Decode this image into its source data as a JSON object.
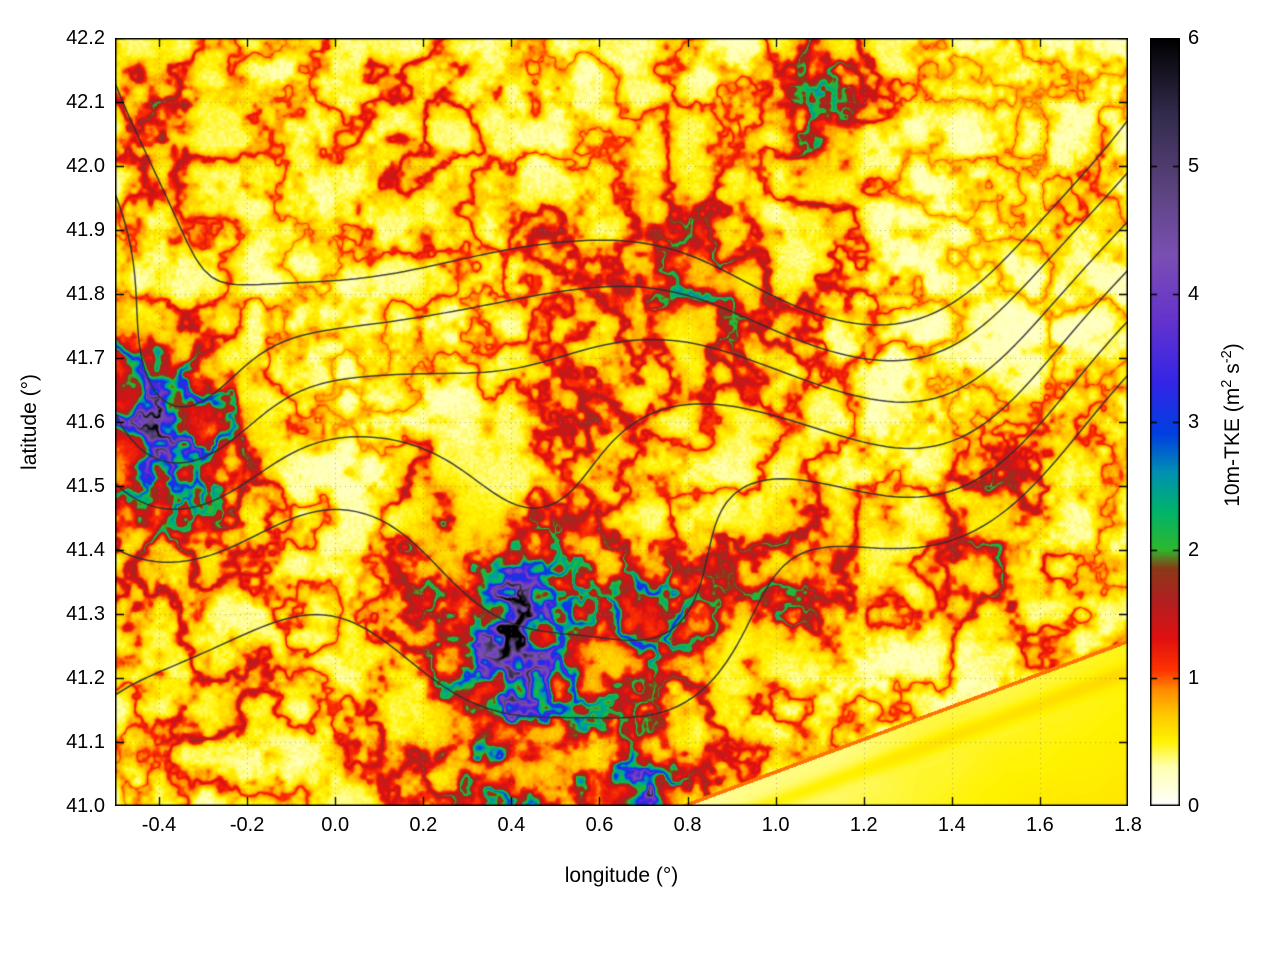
{
  "figure": {
    "background": "#ffffff",
    "frame_color": "#000000",
    "grid_color": "#787878",
    "contour_color": "#2e2e2e"
  },
  "chart_data": {
    "type": "heatmap",
    "title": "",
    "xlabel": "longitude (°)",
    "ylabel": "latitude (°)",
    "xlim": [
      -0.5,
      1.8
    ],
    "ylim": [
      41.0,
      42.2
    ],
    "grid": true,
    "xticks": [
      -0.4,
      -0.2,
      0.0,
      0.2,
      0.4,
      0.6,
      0.8,
      1.0,
      1.2,
      1.4,
      1.6,
      1.8
    ],
    "yticks": [
      41.0,
      41.1,
      41.2,
      41.3,
      41.4,
      41.5,
      41.6,
      41.7,
      41.8,
      41.9,
      42.0,
      42.1,
      42.2
    ],
    "tick_format": {
      "x_decimals": 1,
      "y_decimals": 1,
      "cb_decimals": 0
    },
    "colorbar": {
      "label_parts": {
        "prefix": "10m-TKE (m",
        "sup1": "2",
        "mid": " s",
        "sup2": "-2",
        "suffix": ")"
      },
      "range": [
        0,
        6
      ],
      "ticks": [
        0,
        1,
        2,
        3,
        4,
        5,
        6
      ],
      "position": "right"
    },
    "palette": [
      [
        0.0,
        "#ffffff"
      ],
      [
        0.3,
        "#ffffb0"
      ],
      [
        0.5,
        "#fff200"
      ],
      [
        0.7,
        "#ffc800"
      ],
      [
        0.9,
        "#ff8c00"
      ],
      [
        1.05,
        "#ff3300"
      ],
      [
        1.3,
        "#e01010"
      ],
      [
        1.6,
        "#b02020"
      ],
      [
        1.85,
        "#8a3a18"
      ],
      [
        2.0,
        "#2eb82e"
      ],
      [
        2.3,
        "#00b36b"
      ],
      [
        2.6,
        "#0090b3"
      ],
      [
        2.9,
        "#0040e0"
      ],
      [
        3.3,
        "#3325e6"
      ],
      [
        3.8,
        "#6633cc"
      ],
      [
        4.3,
        "#7a4fb3"
      ],
      [
        4.8,
        "#5c4480"
      ],
      [
        5.4,
        "#332b4d"
      ],
      [
        6.0,
        "#000000"
      ]
    ],
    "heatmap": {
      "units": "m2 s-2",
      "lon": [
        -0.5,
        -0.4,
        -0.3,
        -0.2,
        -0.1,
        0.0,
        0.1,
        0.2,
        0.3,
        0.4,
        0.5,
        0.6,
        0.7,
        0.8,
        0.9,
        1.0,
        1.1,
        1.2,
        1.3,
        1.4,
        1.5,
        1.6,
        1.7,
        1.8
      ],
      "lat": [
        42.2,
        42.1,
        42.0,
        41.9,
        41.8,
        41.7,
        41.6,
        41.5,
        41.4,
        41.3,
        41.2,
        41.1,
        41.0
      ],
      "values": [
        [
          0.45,
          0.4,
          0.38,
          0.35,
          0.3,
          0.45,
          0.5,
          0.45,
          0.4,
          0.35,
          0.3,
          0.35,
          0.4,
          0.35,
          0.3,
          0.45,
          0.75,
          0.5,
          0.35,
          0.3,
          0.3,
          0.35,
          0.3,
          0.3
        ],
        [
          0.55,
          0.7,
          0.5,
          0.4,
          0.35,
          0.4,
          0.45,
          0.5,
          0.45,
          0.4,
          0.35,
          0.3,
          0.35,
          0.4,
          0.35,
          0.45,
          0.95,
          0.55,
          0.35,
          0.3,
          0.3,
          0.3,
          0.35,
          0.3
        ],
        [
          0.45,
          0.6,
          0.45,
          0.4,
          0.35,
          0.4,
          0.5,
          0.45,
          0.4,
          0.4,
          0.35,
          0.35,
          0.4,
          0.45,
          0.4,
          0.4,
          0.8,
          0.45,
          0.3,
          0.3,
          0.35,
          0.3,
          0.4,
          0.35
        ],
        [
          0.35,
          0.4,
          0.4,
          0.35,
          0.3,
          0.35,
          0.4,
          0.45,
          0.4,
          0.45,
          0.6,
          0.4,
          0.5,
          0.7,
          0.5,
          0.4,
          0.5,
          0.4,
          0.3,
          0.3,
          0.3,
          0.35,
          0.4,
          0.3
        ],
        [
          0.3,
          0.35,
          0.4,
          0.35,
          0.3,
          0.3,
          0.35,
          0.4,
          0.35,
          0.4,
          0.45,
          0.5,
          0.6,
          0.9,
          0.8,
          0.6,
          0.5,
          0.45,
          0.35,
          0.3,
          0.3,
          0.3,
          0.35,
          0.3
        ],
        [
          1.2,
          1.0,
          0.6,
          0.4,
          0.3,
          0.3,
          0.3,
          0.35,
          0.35,
          0.4,
          0.45,
          0.5,
          0.45,
          0.5,
          0.6,
          0.5,
          0.45,
          0.4,
          0.35,
          0.3,
          0.3,
          0.3,
          0.3,
          0.3
        ],
        [
          1.4,
          2.2,
          1.5,
          0.7,
          0.4,
          0.3,
          0.3,
          0.3,
          0.35,
          0.4,
          0.5,
          0.6,
          0.45,
          0.4,
          0.4,
          0.4,
          0.4,
          0.35,
          0.3,
          0.3,
          0.35,
          0.4,
          0.4,
          0.35
        ],
        [
          0.8,
          1.1,
          1.0,
          0.6,
          0.4,
          0.35,
          0.3,
          0.7,
          0.5,
          0.4,
          0.4,
          0.45,
          0.4,
          0.35,
          0.35,
          0.4,
          0.45,
          0.4,
          0.35,
          0.5,
          0.7,
          0.5,
          0.35,
          0.3
        ],
        [
          0.5,
          0.7,
          0.6,
          0.5,
          0.4,
          0.35,
          0.35,
          0.8,
          0.7,
          0.9,
          0.8,
          0.7,
          0.5,
          0.45,
          0.6,
          0.7,
          0.6,
          0.45,
          0.4,
          0.55,
          0.8,
          0.5,
          0.35,
          0.3
        ],
        [
          0.45,
          0.5,
          0.5,
          0.45,
          0.4,
          0.35,
          0.4,
          0.6,
          1.0,
          2.8,
          1.2,
          0.8,
          1.6,
          0.9,
          0.6,
          0.8,
          0.6,
          0.45,
          0.4,
          0.45,
          0.6,
          0.45,
          0.35,
          0.35
        ],
        [
          0.4,
          0.45,
          0.5,
          0.55,
          0.4,
          0.35,
          0.45,
          0.6,
          1.1,
          2.2,
          1.4,
          0.9,
          0.7,
          0.6,
          0.5,
          0.4,
          0.38,
          0.36,
          0.36,
          0.38,
          0.4,
          0.42,
          0.44,
          0.46
        ],
        [
          0.35,
          0.4,
          0.6,
          0.5,
          0.4,
          0.4,
          0.5,
          0.6,
          0.9,
          1.3,
          1.0,
          0.8,
          0.7,
          0.5,
          0.42,
          0.4,
          0.38,
          0.38,
          0.4,
          0.42,
          0.44,
          0.46,
          0.48,
          0.5
        ],
        [
          0.3,
          0.35,
          0.4,
          0.4,
          0.35,
          0.4,
          0.45,
          0.5,
          0.7,
          1.0,
          0.9,
          1.1,
          2.4,
          0.8,
          0.5,
          0.42,
          0.4,
          0.4,
          0.42,
          0.44,
          0.46,
          0.5,
          0.52,
          0.55
        ]
      ]
    },
    "contours": {
      "levels": [
        300,
        700,
        1100,
        1500,
        1900,
        2300
      ],
      "base_elevation": 400,
      "terrain_hills": [
        [
          -0.2,
          42.45,
          2600,
          0.45
        ],
        [
          0.5,
          42.42,
          2400,
          0.4
        ],
        [
          1.1,
          42.4,
          2600,
          0.45
        ],
        [
          1.7,
          42.35,
          2200,
          0.4
        ],
        [
          1.15,
          42.05,
          1100,
          0.18
        ],
        [
          -0.05,
          41.95,
          800,
          0.3
        ],
        [
          -0.38,
          41.63,
          900,
          0.16
        ],
        [
          0.45,
          41.4,
          750,
          0.22
        ],
        [
          0.8,
          41.28,
          600,
          0.16
        ],
        [
          1.45,
          41.5,
          700,
          0.25
        ],
        [
          1.3,
          41.85,
          700,
          0.3
        ],
        [
          0.15,
          41.15,
          -350,
          0.5
        ],
        [
          2.0,
          40.75,
          -2600,
          0.75
        ]
      ]
    },
    "coastline": {
      "start": [
        0.78,
        41.0
      ],
      "end": [
        1.8,
        41.26
      ]
    }
  }
}
